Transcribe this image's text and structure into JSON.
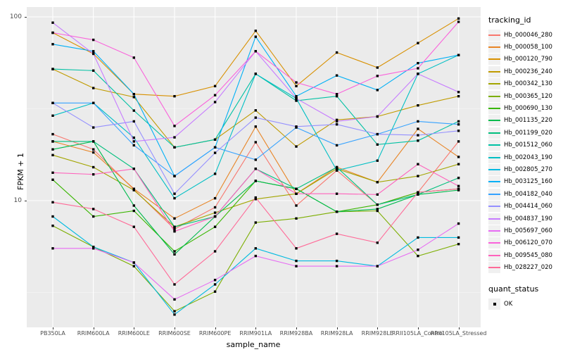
{
  "figure": {
    "background": "#FFFFFF",
    "panel_background": "#EBEBEB",
    "grid_color": "#FFFFFF",
    "axis_text_color": "#4D4D4D",
    "point_color": "#000000"
  },
  "y_axis": {
    "title": "FPKM + 1",
    "tick_labels": [
      "100",
      "10"
    ],
    "tick_values": [
      100,
      10
    ]
  },
  "x_axis": {
    "title": "sample_name"
  },
  "legend": {
    "tracking_title": "tracking_id",
    "quant_title": "quant_status",
    "quant_items": [
      {
        "label": "OK",
        "marker": "filled-square"
      }
    ]
  },
  "chart_data": {
    "type": "line",
    "title": "",
    "xlabel": "sample_name",
    "ylabel": "FPKM + 1",
    "y_scale": "log10",
    "ylim": [
      2.0,
      113.0
    ],
    "y_major_gridlines": [
      10,
      100
    ],
    "y_minor_gridlines": [
      3.162,
      31.62
    ],
    "grid": true,
    "legend_position": "right",
    "point_shape": "filled-square",
    "categories": [
      "PB350LA",
      "RRIM600LA",
      "RRIM600LE",
      "RRIM600SE",
      "RRIM600PE",
      "RRIM901LA",
      "RRIM928BA",
      "RRIM928LA",
      "RRIM928LE",
      "RRII105LA_Control",
      "RRII105LA_Stressed"
    ],
    "series": [
      {
        "name": "Hb_000046_280",
        "color": "#F8766D",
        "values": [
          23,
          19,
          11.5,
          7.0,
          9.2,
          20.8,
          9.4,
          14.6,
          9.5,
          11.1,
          21
        ]
      },
      {
        "name": "Hb_000058_100",
        "color": "#E88526",
        "values": [
          21,
          18.3,
          11.6,
          8.0,
          10.3,
          25.3,
          10.9,
          15.2,
          12.6,
          24.6,
          17.3
        ]
      },
      {
        "name": "Hb_000120_790",
        "color": "#D89000",
        "values": [
          82,
          63,
          38,
          37,
          42,
          84,
          42,
          64,
          53,
          72,
          98
        ]
      },
      {
        "name": "Hb_000236_240",
        "color": "#C09B00",
        "values": [
          52,
          41,
          36.6,
          19.5,
          21.5,
          31,
          19.7,
          27.5,
          28.7,
          33,
          37
        ]
      },
      {
        "name": "Hb_000342_130",
        "color": "#A3A500",
        "values": [
          17.7,
          15.2,
          11.4,
          7.2,
          8.6,
          10.2,
          10.9,
          14.9,
          12.6,
          13.6,
          15.8
        ]
      },
      {
        "name": "Hb_000365_120",
        "color": "#7CAE00",
        "values": [
          7.3,
          5.6,
          4.4,
          2.5,
          3.2,
          7.6,
          8.0,
          8.7,
          8.8,
          5.0,
          5.8
        ]
      },
      {
        "name": "Hb_000690_130",
        "color": "#39B600",
        "values": [
          13,
          8.2,
          8.8,
          5.3,
          7.2,
          12.8,
          11.6,
          8.7,
          9.5,
          11.1,
          11.6
        ]
      },
      {
        "name": "Hb_001135_220",
        "color": "#00BB4E",
        "values": [
          19,
          21,
          9.4,
          5.1,
          8.2,
          12.8,
          11.6,
          8.7,
          9.0,
          10.8,
          11.4
        ]
      },
      {
        "name": "Hb_001199_020",
        "color": "#00BF7D",
        "values": [
          21,
          21,
          14.9,
          7.2,
          8.2,
          14.9,
          11.6,
          15.2,
          9.5,
          10.8,
          13.3
        ]
      },
      {
        "name": "Hb_001512_060",
        "color": "#00C1A3",
        "values": [
          52,
          51,
          30.9,
          19.5,
          21.5,
          49,
          35,
          37,
          20.2,
          21.2,
          27
        ]
      },
      {
        "name": "Hb_002043_190",
        "color": "#00BFC4",
        "values": [
          29,
          34,
          22,
          10.3,
          14,
          49,
          36,
          14.6,
          16.5,
          49,
          62
        ]
      },
      {
        "name": "Hb_002805_270",
        "color": "#00BAE0",
        "values": [
          8.2,
          5.6,
          4.6,
          2.4,
          3.5,
          5.5,
          4.7,
          4.7,
          4.4,
          6.3,
          6.3
        ]
      },
      {
        "name": "Hb_003125_160",
        "color": "#00B0F6",
        "values": [
          71,
          65,
          38,
          13.6,
          19.5,
          78,
          37,
          48,
          40,
          56,
          62
        ]
      },
      {
        "name": "Hb_004182_040",
        "color": "#35A2FF",
        "values": [
          34,
          34,
          20,
          13.6,
          19.5,
          16.7,
          25,
          20,
          23,
          27,
          26
        ]
      },
      {
        "name": "Hb_004414_060",
        "color": "#9590FF",
        "values": [
          34,
          25,
          27,
          10.9,
          18.2,
          28.3,
          25.3,
          26,
          23,
          22.7,
          24
        ]
      },
      {
        "name": "Hb_004837_190",
        "color": "#C77CFF",
        "values": [
          93,
          63,
          21,
          22.1,
          34.4,
          65,
          36,
          27,
          28.7,
          49,
          39
        ]
      },
      {
        "name": "Hb_005697_060",
        "color": "#E76BF3",
        "values": [
          5.5,
          5.5,
          4.6,
          2.9,
          3.7,
          5.0,
          4.4,
          4.4,
          4.4,
          5.4,
          7.5
        ]
      },
      {
        "name": "Hb_006120_070",
        "color": "#FA62DB",
        "values": [
          82,
          75,
          60,
          25.5,
          37.5,
          65,
          44,
          38,
          47.7,
          52.5,
          94
        ]
      },
      {
        "name": "Hb_009545_080",
        "color": "#FF62BC",
        "values": [
          14.2,
          13.9,
          14.9,
          6.8,
          8.2,
          14.9,
          10.9,
          10.9,
          10.8,
          15.8,
          12.0
        ]
      },
      {
        "name": "Hb_028227_020",
        "color": "#FF6A98",
        "values": [
          9.8,
          9.0,
          7.2,
          3.5,
          5.3,
          10.4,
          5.5,
          6.6,
          5.9,
          11.1,
          11.6
        ]
      }
    ]
  }
}
